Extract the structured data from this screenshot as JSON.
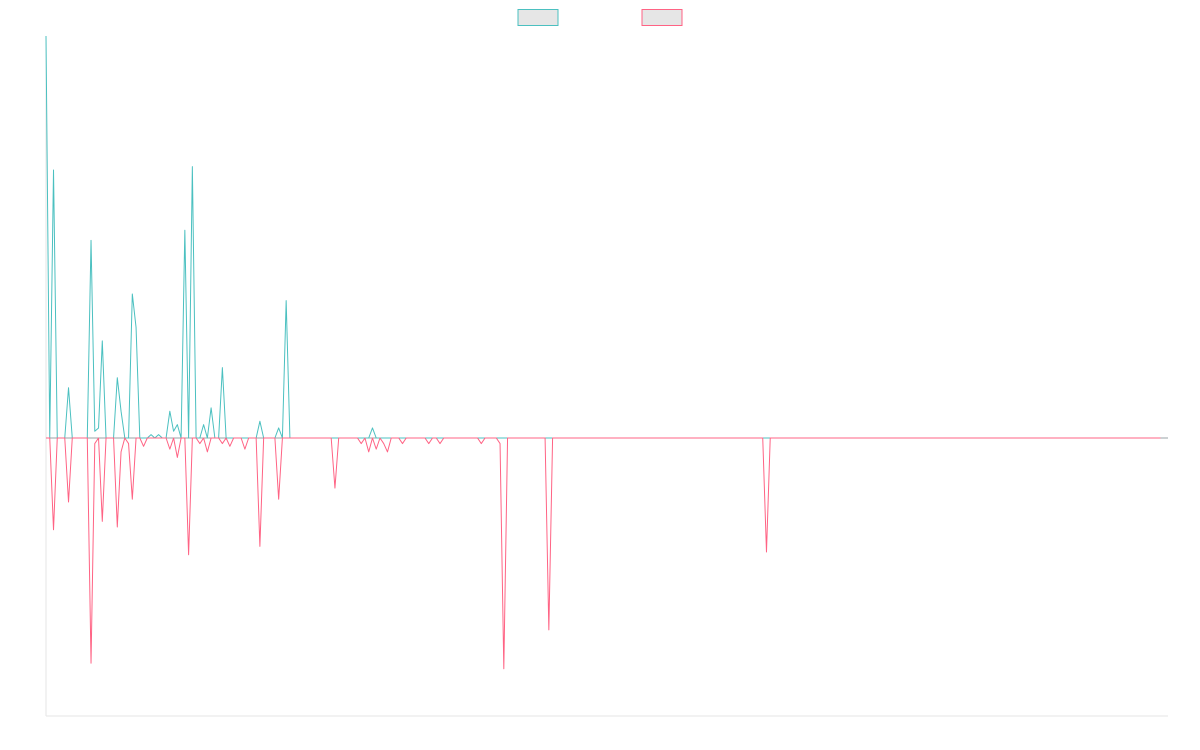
{
  "chart_data": {
    "type": "line",
    "title": "",
    "xlabel": "",
    "ylabel": "",
    "grid": false,
    "legend_position": "top-center",
    "x_count": 300,
    "ylim": [
      -1.0,
      1.2
    ],
    "series": [
      {
        "name": "",
        "color": "#4bc0c0",
        "fill": "#e6e6e6",
        "values": [
          1.2,
          0.0,
          0.8,
          0.0,
          0.0,
          0.0,
          0.15,
          0.0,
          0.0,
          0.0,
          0.0,
          0.0,
          0.59,
          0.02,
          0.03,
          0.29,
          0.0,
          0.0,
          0.0,
          0.18,
          0.08,
          0.0,
          0.0,
          0.43,
          0.33,
          0.0,
          0.0,
          0.0,
          0.01,
          0.0,
          0.01,
          0.0,
          0.0,
          0.08,
          0.02,
          0.04,
          0.0,
          0.62,
          0.0,
          0.81,
          0.0,
          0.0,
          0.04,
          0.0,
          0.09,
          0.0,
          0.0,
          0.21,
          0.0,
          0.0,
          0.0,
          0.0,
          0.0,
          0.0,
          0.0,
          0.0,
          0.0,
          0.05,
          0.0,
          0.0,
          0.0,
          0.0,
          0.03,
          0.0,
          0.41,
          0.0,
          0.0,
          0.0,
          0.0,
          0.0,
          0.0,
          0.0,
          0.0,
          0.0,
          0.0,
          0.0,
          0.0,
          0.0,
          0.0,
          0.0,
          0.0,
          0.0,
          0.0,
          0.0,
          0.0,
          0.0,
          0.0,
          0.03,
          0.0,
          0.0,
          0.0,
          0.0,
          0.0,
          0.0,
          0.0,
          0.0,
          0.0,
          0.0,
          0.0,
          0.0,
          0.0,
          0.0,
          0.0,
          0.0,
          0.0,
          0.0,
          0.0,
          0.0,
          0.0,
          0.0,
          0.0,
          0.0,
          0.0,
          0.0,
          0.0,
          0.0,
          0.0,
          0.0,
          0.0,
          0.0,
          0.0,
          0.0,
          0.0,
          0.0,
          0.0,
          0.0,
          0.0,
          0.0,
          0.0,
          0.0,
          0.0,
          0.0,
          0.0,
          0.0,
          0.0,
          0.0,
          0.0,
          0.0,
          0.0,
          0.0,
          0.0,
          0.0,
          0.0,
          0.0,
          0.0,
          0.0,
          0.0,
          0.0,
          0.0,
          0.0,
          0.0,
          0.0,
          0.0,
          0.0,
          0.0,
          0.0,
          0.0,
          0.0,
          0.0,
          0.0,
          0.0,
          0.0,
          0.0,
          0.0,
          0.0,
          0.0,
          0.0,
          0.0,
          0.0,
          0.0,
          0.0,
          0.0,
          0.0,
          0.0,
          0.0,
          0.0,
          0.0,
          0.0,
          0.0,
          0.0,
          0.0,
          0.0,
          0.0,
          0.0,
          0.0,
          0.0,
          0.0,
          0.0,
          0.0,
          0.0,
          0.0,
          0.0,
          0.0,
          0.0,
          0.0,
          0.0,
          0.0,
          0.0,
          0.0,
          0.0,
          0.0,
          0.0,
          0.0,
          0.0,
          0.0,
          0.0,
          0.0,
          0.0,
          0.0,
          0.0,
          0.0,
          0.0,
          0.0,
          0.0,
          0.0,
          0.0,
          0.0,
          0.0,
          0.0,
          0.0,
          0.0,
          0.0,
          0.0,
          0.0,
          0.0,
          0.0,
          0.0,
          0.0,
          0.0,
          0.0,
          0.0,
          0.0,
          0.0,
          0.0,
          0.0,
          0.0,
          0.0,
          0.0,
          0.0,
          0.0,
          0.0,
          0.0,
          0.0,
          0.0,
          0.0,
          0.0,
          0.0,
          0.0,
          0.0,
          0.0,
          0.0,
          0.0,
          0.0,
          0.0,
          0.0,
          0.0,
          0.0,
          0.0,
          0.0,
          0.0,
          0.0,
          0.0,
          0.0,
          0.0,
          0.0,
          0.0,
          0.0,
          0.0,
          0.0,
          0.0,
          0.0,
          0.0,
          0.0,
          0.0,
          0.0,
          0.0,
          0.0,
          0.0,
          0.0,
          0.0,
          0.0,
          0.0,
          0.0,
          0.0,
          0.0,
          0.0,
          0.0,
          0.0,
          0.0,
          0.0
        ]
      },
      {
        "name": "",
        "color": "#ff6384",
        "fill": "#e6e6e6",
        "values": [
          0.0,
          0.0,
          -0.33,
          0.0,
          0.0,
          0.0,
          -0.23,
          0.0,
          0.0,
          0.0,
          0.0,
          0.0,
          -0.81,
          -0.02,
          0.0,
          -0.3,
          0.0,
          0.0,
          0.0,
          -0.32,
          -0.05,
          0.0,
          -0.02,
          -0.22,
          0.0,
          0.0,
          -0.03,
          0.0,
          0.0,
          0.0,
          0.0,
          0.0,
          0.0,
          -0.04,
          0.0,
          -0.07,
          0.0,
          0.0,
          -0.42,
          0.0,
          0.0,
          -0.02,
          0.0,
          -0.05,
          0.0,
          0.0,
          0.0,
          -0.02,
          0.0,
          -0.03,
          0.0,
          0.0,
          0.0,
          -0.04,
          0.0,
          0.0,
          0.0,
          -0.39,
          0.0,
          0.0,
          0.0,
          0.0,
          -0.22,
          0.0,
          0.0,
          0.0,
          0.0,
          0.0,
          0.0,
          0.0,
          0.0,
          0.0,
          0.0,
          0.0,
          0.0,
          0.0,
          0.0,
          -0.18,
          0.0,
          0.0,
          0.0,
          0.0,
          0.0,
          0.0,
          -0.02,
          0.0,
          -0.05,
          0.0,
          -0.04,
          0.0,
          -0.02,
          -0.05,
          0.0,
          0.0,
          0.0,
          -0.02,
          0.0,
          0.0,
          0.0,
          0.0,
          0.0,
          0.0,
          -0.02,
          0.0,
          0.0,
          -0.02,
          0.0,
          0.0,
          0.0,
          0.0,
          0.0,
          0.0,
          0.0,
          0.0,
          0.0,
          0.0,
          -0.02,
          0.0,
          0.0,
          0.0,
          0.0,
          -0.02,
          -0.83,
          0.0,
          0.0,
          0.0,
          0.0,
          0.0,
          0.0,
          0.0,
          0.0,
          0.0,
          0.0,
          0.0,
          -0.69,
          0.0,
          0.0,
          0.0,
          0.0,
          0.0,
          0.0,
          0.0,
          0.0,
          0.0,
          0.0,
          0.0,
          0.0,
          0.0,
          0.0,
          0.0,
          0.0,
          0.0,
          0.0,
          0.0,
          0.0,
          0.0,
          0.0,
          0.0,
          0.0,
          0.0,
          0.0,
          0.0,
          0.0,
          0.0,
          0.0,
          0.0,
          0.0,
          0.0,
          0.0,
          0.0,
          0.0,
          0.0,
          0.0,
          0.0,
          0.0,
          0.0,
          0.0,
          0.0,
          0.0,
          0.0,
          0.0,
          0.0,
          0.0,
          0.0,
          0.0,
          0.0,
          0.0,
          0.0,
          0.0,
          0.0,
          0.0,
          0.0,
          -0.41,
          0.0,
          0.0,
          0.0,
          0.0,
          0.0,
          0.0,
          0.0,
          0.0,
          0.0,
          0.0,
          0.0,
          0.0,
          0.0,
          0.0,
          0.0,
          0.0,
          0.0,
          0.0,
          0.0,
          0.0,
          0.0,
          0.0,
          0.0,
          0.0,
          0.0,
          0.0,
          0.0,
          0.0,
          0.0,
          0.0,
          0.0,
          0.0,
          0.0,
          0.0,
          0.0,
          0.0,
          0.0,
          0.0,
          0.0,
          0.0,
          0.0,
          0.0,
          0.0,
          0.0,
          0.0,
          0.0,
          0.0,
          0.0,
          0.0,
          0.0,
          0.0,
          0.0,
          0.0,
          0.0,
          0.0,
          0.0,
          0.0,
          0.0,
          0.0,
          0.0,
          0.0,
          0.0,
          0.0,
          0.0,
          0.0,
          0.0,
          0.0,
          0.0,
          0.0,
          0.0,
          0.0,
          0.0,
          0.0,
          0.0,
          0.0,
          0.0,
          0.0,
          0.0,
          0.0,
          0.0,
          0.0,
          0.0,
          0.0,
          0.0,
          0.0,
          0.0,
          0.0,
          0.0,
          0.0,
          0.0,
          0.0,
          0.0,
          0.0,
          0.0,
          0.0,
          0.0,
          0.0,
          0.0,
          0.0,
          0.0,
          0.0,
          0.0,
          0.0,
          0.0,
          0.0
        ]
      }
    ]
  }
}
